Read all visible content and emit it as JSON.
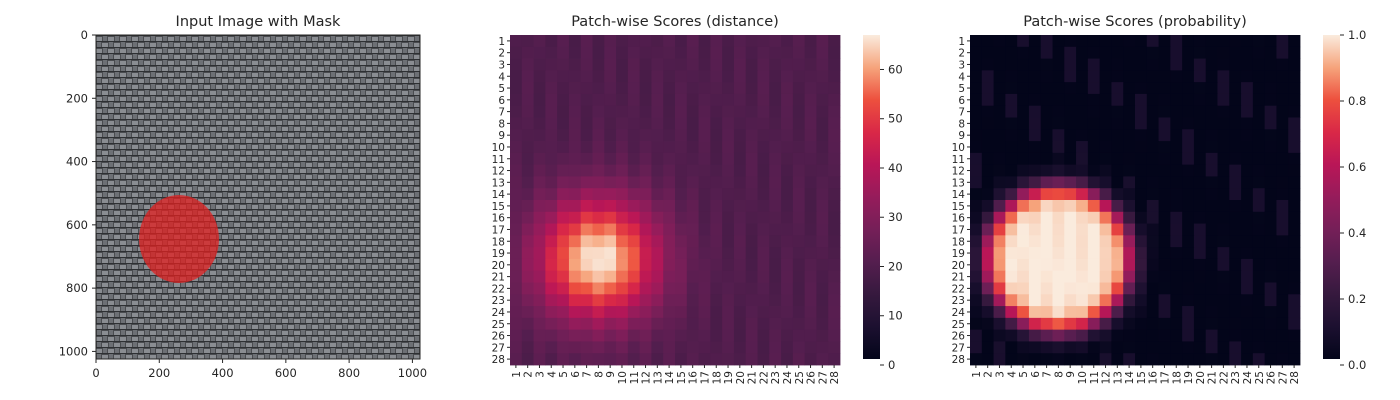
{
  "chart_data": [
    {
      "type": "image",
      "title": "Input Image with Mask",
      "xlim": [
        0,
        1024
      ],
      "ylim": [
        1024,
        0
      ],
      "xticks": [
        "0",
        "200",
        "400",
        "600",
        "800",
        "1000"
      ],
      "yticks": [
        "0",
        "200",
        "400",
        "600",
        "800",
        "1000"
      ],
      "mask": {
        "shape": "ellipse",
        "color": "#e02020",
        "center_x": 262,
        "center_y": 645,
        "radius_x": 127,
        "radius_y": 140
      },
      "background": "woven-fabric-texture"
    },
    {
      "type": "heatmap",
      "title": "Patch-wise Scores (distance)",
      "grid_size": 28,
      "row_labels": [
        "1",
        "2",
        "3",
        "4",
        "5",
        "6",
        "7",
        "8",
        "9",
        "10",
        "11",
        "12",
        "13",
        "14",
        "15",
        "16",
        "17",
        "18",
        "19",
        "20",
        "21",
        "22",
        "23",
        "24",
        "25",
        "26",
        "27",
        "28"
      ],
      "col_labels": [
        "1",
        "2",
        "3",
        "4",
        "5",
        "6",
        "7",
        "8",
        "9",
        "10",
        "11",
        "12",
        "13",
        "14",
        "15",
        "16",
        "17",
        "18",
        "19",
        "20",
        "21",
        "22",
        "23",
        "24",
        "25",
        "26",
        "27",
        "28"
      ],
      "colormap": "rocket",
      "colorbar": {
        "min": 0,
        "max": 67,
        "ticks": [
          "0",
          "10",
          "20",
          "30",
          "40",
          "50",
          "60"
        ]
      },
      "anomaly_center": {
        "col": 8,
        "row": 19.5
      },
      "peak_value": 67,
      "background_value": 19
    },
    {
      "type": "heatmap",
      "title": "Patch-wise Scores (probability)",
      "grid_size": 28,
      "row_labels": [
        "1",
        "2",
        "3",
        "4",
        "5",
        "6",
        "7",
        "8",
        "9",
        "10",
        "11",
        "12",
        "13",
        "14",
        "15",
        "16",
        "17",
        "18",
        "19",
        "20",
        "21",
        "22",
        "23",
        "24",
        "25",
        "26",
        "27",
        "28"
      ],
      "col_labels": [
        "1",
        "2",
        "3",
        "4",
        "5",
        "6",
        "7",
        "8",
        "9",
        "10",
        "11",
        "12",
        "13",
        "14",
        "15",
        "16",
        "17",
        "18",
        "19",
        "20",
        "21",
        "22",
        "23",
        "24",
        "25",
        "26",
        "27",
        "28"
      ],
      "colormap": "rocket",
      "colorbar": {
        "min": 0,
        "max": 1,
        "ticks": [
          "0.0",
          "0.2",
          "0.4",
          "0.6",
          "0.8",
          "1.0"
        ]
      },
      "anomaly_center": {
        "col": 8,
        "row": 19.5
      },
      "peak_value": 1.0,
      "background_value": 0.0
    }
  ]
}
